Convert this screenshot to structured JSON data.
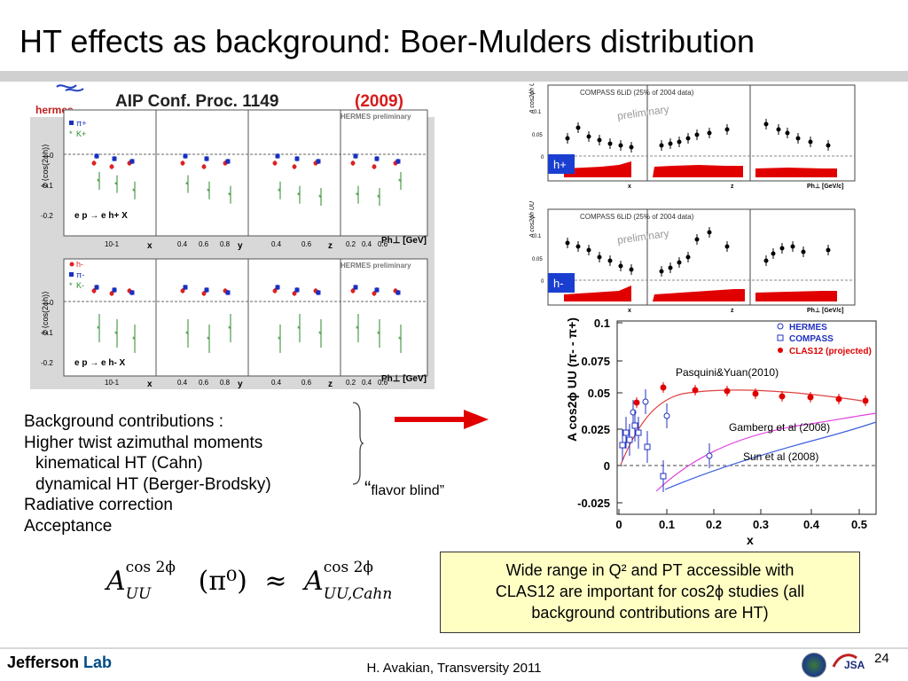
{
  "title": "HT effects as background:  Boer-Mulders distribution",
  "hermes_figure": {
    "header": "AIP Conf. Proc. 1149",
    "year": "(2009)",
    "logo_text": "hermes",
    "preliminary": "HERMES preliminary",
    "top": {
      "ylabel": "2 ⟨cos(2ϕh)⟩",
      "legend": [
        "π+",
        "K+"
      ],
      "reaction": "e p → e h+ X",
      "yticks": [
        "0",
        "-0.1",
        "-0.2"
      ]
    },
    "bottom": {
      "ylabel": "2 ⟨cos(2ϕh)⟩",
      "legend": [
        "h-",
        "π-",
        "K-"
      ],
      "reaction": "e p → e h- X",
      "yticks": [
        "0",
        "-0.1",
        "-0.2"
      ]
    },
    "xlabels": [
      "x",
      "y",
      "z",
      "Ph⊥ [GeV]"
    ],
    "xticks": [
      [
        "10-1"
      ],
      [
        "0.4",
        "0.6",
        "0.8"
      ],
      [
        "0.4",
        "0.6"
      ],
      [
        "0.2",
        "0.4",
        "0.6",
        "0.8"
      ]
    ],
    "colors": {
      "red": "#e02020",
      "blue": "#1830c0",
      "green": "#2a8a2a"
    }
  },
  "compass_figure": {
    "header": "COMPASS 6LiD (25% of 2004 data)",
    "watermark": "preliminary",
    "ylabel": "A cos2ϕh UU",
    "top_tag": "h+",
    "bottom_tag": "h-",
    "yticks": [
      "0.1",
      "0.05",
      "0"
    ],
    "xlabels": [
      "x",
      "z",
      "Ph⊥ [GeV/c]"
    ],
    "tag_color": "#1a3fd0",
    "band_color": "#e00000"
  },
  "clas_chart": {
    "type": "scatter",
    "ylabel": "A cos2ϕ UU (π- - π+)",
    "xlabel": "x",
    "yticks": [
      "0.1",
      "0.075",
      "0.05",
      "0.025",
      "0",
      "-0.025"
    ],
    "xticks": [
      "0",
      "0.1",
      "0.2",
      "0.3",
      "0.4",
      "0.5"
    ],
    "legend": [
      {
        "label": "HERMES",
        "marker": "open-circle",
        "color": "#2030c0"
      },
      {
        "label": "COMPASS",
        "marker": "open-square",
        "color": "#2030c0"
      },
      {
        "label": "CLAS12 (projected)",
        "marker": "filled-circle",
        "color": "#e00000"
      }
    ],
    "annotations": [
      "Pasquini&Yuan(2010)",
      "Gamberg et al (2008)",
      "Sun et al (2008)"
    ]
  },
  "background_list": {
    "heading": "Background contributions :",
    "items": [
      "Higher twist azimuthal moments",
      "kinematical HT (Cahn)",
      "dynamical HT   (Berger-Brodsky)",
      "Radiative correction",
      "Acceptance"
    ]
  },
  "flavor_note": {
    "open_quote": "“",
    "text": "flavor blind”"
  },
  "formula": {
    "lhs_base": "A",
    "lhs_sup": "cos 2ϕ",
    "lhs_sub": "UU",
    "lhs_arg": "(π⁰)",
    "relation": "≈",
    "rhs_base": "A",
    "rhs_sup": "cos 2ϕ",
    "rhs_sub": "UU,Cahn"
  },
  "callout": {
    "line1": "Wide range in Q² and PT accessible with",
    "line2": "CLAS12 are important for cos2ϕ studies (all",
    "line3": "background contributions are HT)"
  },
  "footer": {
    "logo_word1": "Jefferson",
    "logo_word2": "Lab",
    "credit": "H. Avakian, Transversity 2011",
    "slide_number": "24",
    "jsa": "JSA"
  }
}
